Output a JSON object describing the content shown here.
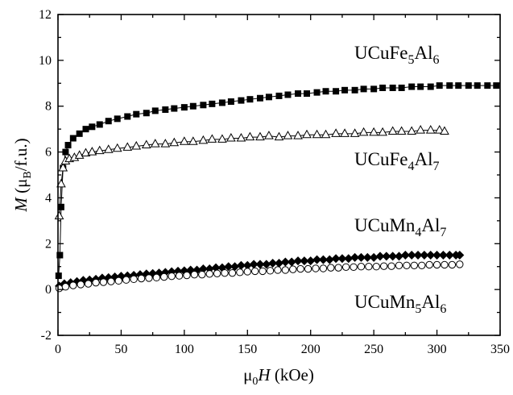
{
  "chart_data": {
    "type": "scatter",
    "xlabel": {
      "base": "μ",
      "sub": "0",
      "var": "H",
      "unit": " (kOe)"
    },
    "ylabel": {
      "var": "M",
      "open": " (μ",
      "sub": "B",
      "rest": "/f.u.)"
    },
    "xlim": [
      0,
      350
    ],
    "ylim": [
      -2,
      12
    ],
    "xticks": [
      "0",
      "50",
      "100",
      "150",
      "200",
      "250",
      "300",
      "350"
    ],
    "yticks": [
      "-2",
      "0",
      "2",
      "4",
      "6",
      "8",
      "10",
      "12"
    ],
    "grid": false,
    "series": [
      {
        "name": {
          "parts": [
            [
              "UCuFe",
              ""
            ],
            [
              "5",
              "sub"
            ],
            [
              "Al",
              ""
            ],
            [
              "6",
              "sub"
            ]
          ]
        },
        "marker": "filled-square",
        "color": "#000000",
        "points": [
          [
            0.5,
            0.6
          ],
          [
            1.5,
            1.5
          ],
          [
            2.5,
            3.6
          ],
          [
            4,
            5.3
          ],
          [
            6,
            6.0
          ],
          [
            8,
            6.3
          ],
          [
            12,
            6.6
          ],
          [
            17,
            6.8
          ],
          [
            22,
            7.0
          ],
          [
            27,
            7.1
          ],
          [
            33,
            7.2
          ],
          [
            40,
            7.35
          ],
          [
            47,
            7.45
          ],
          [
            55,
            7.55
          ],
          [
            62,
            7.65
          ],
          [
            70,
            7.7
          ],
          [
            77,
            7.8
          ],
          [
            85,
            7.85
          ],
          [
            92,
            7.9
          ],
          [
            100,
            7.95
          ],
          [
            107,
            8.0
          ],
          [
            115,
            8.05
          ],
          [
            122,
            8.1
          ],
          [
            130,
            8.15
          ],
          [
            137,
            8.2
          ],
          [
            145,
            8.25
          ],
          [
            152,
            8.3
          ],
          [
            160,
            8.35
          ],
          [
            167,
            8.4
          ],
          [
            175,
            8.45
          ],
          [
            182,
            8.5
          ],
          [
            190,
            8.55
          ],
          [
            197,
            8.55
          ],
          [
            205,
            8.6
          ],
          [
            212,
            8.65
          ],
          [
            220,
            8.65
          ],
          [
            227,
            8.7
          ],
          [
            235,
            8.7
          ],
          [
            242,
            8.75
          ],
          [
            250,
            8.75
          ],
          [
            257,
            8.8
          ],
          [
            265,
            8.8
          ],
          [
            272,
            8.8
          ],
          [
            280,
            8.85
          ],
          [
            287,
            8.85
          ],
          [
            295,
            8.85
          ],
          [
            302,
            8.9
          ],
          [
            310,
            8.9
          ],
          [
            317,
            8.9
          ],
          [
            325,
            8.9
          ],
          [
            332,
            8.9
          ],
          [
            340,
            8.9
          ],
          [
            347,
            8.9
          ]
        ]
      },
      {
        "name": {
          "parts": [
            [
              "UCuFe",
              ""
            ],
            [
              "4",
              "sub"
            ],
            [
              "Al",
              ""
            ],
            [
              "7",
              "sub"
            ]
          ]
        },
        "marker": "open-triangle",
        "color": "#000000",
        "points": [
          [
            1,
            3.2
          ],
          [
            2.5,
            4.6
          ],
          [
            4,
            5.3
          ],
          [
            6,
            5.6
          ],
          [
            9,
            5.7
          ],
          [
            13,
            5.75
          ],
          [
            17,
            5.85
          ],
          [
            22,
            5.95
          ],
          [
            27,
            6.0
          ],
          [
            33,
            6.05
          ],
          [
            40,
            6.1
          ],
          [
            47,
            6.15
          ],
          [
            55,
            6.2
          ],
          [
            62,
            6.25
          ],
          [
            70,
            6.3
          ],
          [
            77,
            6.35
          ],
          [
            85,
            6.35
          ],
          [
            92,
            6.4
          ],
          [
            100,
            6.45
          ],
          [
            107,
            6.45
          ],
          [
            115,
            6.5
          ],
          [
            122,
            6.55
          ],
          [
            130,
            6.55
          ],
          [
            137,
            6.6
          ],
          [
            145,
            6.6
          ],
          [
            152,
            6.65
          ],
          [
            160,
            6.65
          ],
          [
            167,
            6.7
          ],
          [
            175,
            6.65
          ],
          [
            182,
            6.7
          ],
          [
            190,
            6.7
          ],
          [
            197,
            6.75
          ],
          [
            205,
            6.75
          ],
          [
            212,
            6.75
          ],
          [
            220,
            6.8
          ],
          [
            227,
            6.8
          ],
          [
            235,
            6.8
          ],
          [
            242,
            6.85
          ],
          [
            250,
            6.85
          ],
          [
            257,
            6.85
          ],
          [
            265,
            6.9
          ],
          [
            272,
            6.9
          ],
          [
            280,
            6.9
          ],
          [
            287,
            6.95
          ],
          [
            295,
            6.95
          ],
          [
            302,
            6.95
          ],
          [
            306,
            6.9
          ]
        ]
      },
      {
        "name": {
          "parts": [
            [
              "UCuMn",
              ""
            ],
            [
              "4",
              "sub"
            ],
            [
              "Al",
              ""
            ],
            [
              "7",
              "sub"
            ]
          ]
        },
        "marker": "filled-diamond",
        "color": "#000000",
        "points": [
          [
            1,
            0.15
          ],
          [
            5,
            0.25
          ],
          [
            10,
            0.3
          ],
          [
            15,
            0.35
          ],
          [
            20,
            0.4
          ],
          [
            25,
            0.42
          ],
          [
            30,
            0.45
          ],
          [
            35,
            0.5
          ],
          [
            40,
            0.52
          ],
          [
            45,
            0.55
          ],
          [
            50,
            0.58
          ],
          [
            55,
            0.6
          ],
          [
            60,
            0.62
          ],
          [
            65,
            0.65
          ],
          [
            70,
            0.68
          ],
          [
            75,
            0.7
          ],
          [
            80,
            0.72
          ],
          [
            85,
            0.75
          ],
          [
            90,
            0.78
          ],
          [
            95,
            0.8
          ],
          [
            100,
            0.82
          ],
          [
            105,
            0.85
          ],
          [
            110,
            0.85
          ],
          [
            115,
            0.9
          ],
          [
            120,
            0.9
          ],
          [
            125,
            0.95
          ],
          [
            130,
            0.95
          ],
          [
            135,
            1.0
          ],
          [
            140,
            1.0
          ],
          [
            145,
            1.05
          ],
          [
            150,
            1.05
          ],
          [
            155,
            1.1
          ],
          [
            160,
            1.1
          ],
          [
            165,
            1.1
          ],
          [
            170,
            1.15
          ],
          [
            175,
            1.15
          ],
          [
            180,
            1.2
          ],
          [
            185,
            1.2
          ],
          [
            190,
            1.25
          ],
          [
            195,
            1.25
          ],
          [
            200,
            1.25
          ],
          [
            205,
            1.3
          ],
          [
            210,
            1.3
          ],
          [
            215,
            1.3
          ],
          [
            220,
            1.35
          ],
          [
            225,
            1.35
          ],
          [
            230,
            1.35
          ],
          [
            235,
            1.4
          ],
          [
            240,
            1.4
          ],
          [
            245,
            1.4
          ],
          [
            250,
            1.4
          ],
          [
            255,
            1.45
          ],
          [
            260,
            1.45
          ],
          [
            265,
            1.45
          ],
          [
            270,
            1.45
          ],
          [
            275,
            1.5
          ],
          [
            280,
            1.5
          ],
          [
            285,
            1.5
          ],
          [
            290,
            1.5
          ],
          [
            295,
            1.5
          ],
          [
            300,
            1.5
          ],
          [
            305,
            1.5
          ],
          [
            310,
            1.5
          ],
          [
            315,
            1.5
          ],
          [
            318,
            1.5
          ]
        ]
      },
      {
        "name": {
          "parts": [
            [
              "UCuMn",
              ""
            ],
            [
              "5",
              "sub"
            ],
            [
              "Al",
              ""
            ],
            [
              "6",
              "sub"
            ]
          ]
        },
        "marker": "open-circle",
        "color": "#000000",
        "points": [
          [
            1,
            0.05
          ],
          [
            6,
            0.12
          ],
          [
            12,
            0.18
          ],
          [
            18,
            0.22
          ],
          [
            24,
            0.25
          ],
          [
            30,
            0.3
          ],
          [
            36,
            0.32
          ],
          [
            42,
            0.35
          ],
          [
            48,
            0.38
          ],
          [
            54,
            0.42
          ],
          [
            60,
            0.45
          ],
          [
            66,
            0.48
          ],
          [
            72,
            0.5
          ],
          [
            78,
            0.52
          ],
          [
            84,
            0.55
          ],
          [
            90,
            0.58
          ],
          [
            96,
            0.6
          ],
          [
            102,
            0.62
          ],
          [
            108,
            0.65
          ],
          [
            114,
            0.65
          ],
          [
            120,
            0.68
          ],
          [
            126,
            0.7
          ],
          [
            132,
            0.72
          ],
          [
            138,
            0.72
          ],
          [
            144,
            0.75
          ],
          [
            150,
            0.78
          ],
          [
            156,
            0.8
          ],
          [
            162,
            0.8
          ],
          [
            168,
            0.82
          ],
          [
            174,
            0.85
          ],
          [
            180,
            0.85
          ],
          [
            186,
            0.88
          ],
          [
            192,
            0.9
          ],
          [
            198,
            0.9
          ],
          [
            204,
            0.92
          ],
          [
            210,
            0.92
          ],
          [
            216,
            0.95
          ],
          [
            222,
            0.95
          ],
          [
            228,
            0.98
          ],
          [
            234,
            0.98
          ],
          [
            240,
            1.0
          ],
          [
            246,
            1.0
          ],
          [
            252,
            1.0
          ],
          [
            258,
            1.02
          ],
          [
            264,
            1.02
          ],
          [
            270,
            1.05
          ],
          [
            276,
            1.05
          ],
          [
            282,
            1.05
          ],
          [
            288,
            1.05
          ],
          [
            294,
            1.08
          ],
          [
            300,
            1.08
          ],
          [
            306,
            1.08
          ],
          [
            312,
            1.08
          ],
          [
            318,
            1.1
          ]
        ]
      }
    ]
  }
}
